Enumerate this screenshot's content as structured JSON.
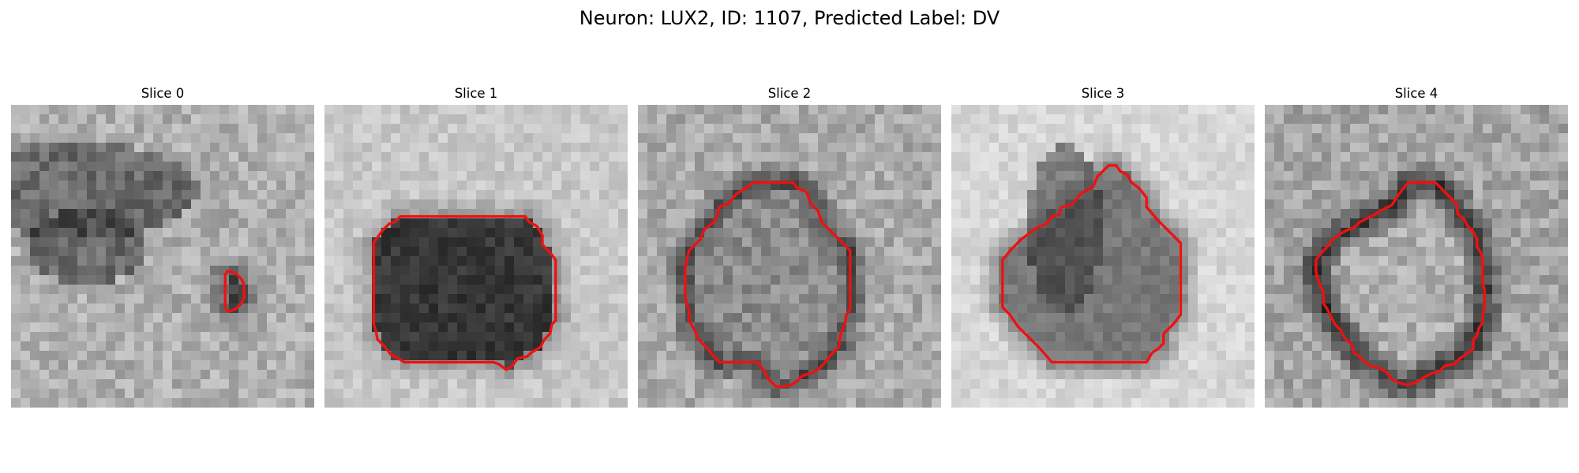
{
  "figure": {
    "title": "Neuron: LUX2, ID: 1107, Predicted Label: DV"
  },
  "contour_color": "#ee1111",
  "panels": [
    {
      "title": "Slice 0",
      "contour": [
        [
          23.2,
          17.6
        ],
        [
          23.8,
          17.9
        ],
        [
          24.3,
          18.4
        ],
        [
          24.6,
          19.0
        ],
        [
          24.6,
          20.4
        ],
        [
          24.3,
          21.0
        ],
        [
          23.8,
          21.5
        ],
        [
          23.2,
          21.8
        ],
        [
          22.8,
          21.8
        ],
        [
          22.6,
          21.4
        ],
        [
          22.6,
          18.0
        ],
        [
          22.8,
          17.6
        ]
      ]
    },
    {
      "title": "Slice 1",
      "contour": [
        [
          8.0,
          11.8
        ],
        [
          21.2,
          11.8
        ],
        [
          21.6,
          12.4
        ],
        [
          22.4,
          12.8
        ],
        [
          23.0,
          13.8
        ],
        [
          23.0,
          14.8
        ],
        [
          23.8,
          15.6
        ],
        [
          24.4,
          16.4
        ],
        [
          24.4,
          22.8
        ],
        [
          24.0,
          23.2
        ],
        [
          23.8,
          24.2
        ],
        [
          23.2,
          24.8
        ],
        [
          22.8,
          25.6
        ],
        [
          21.8,
          26.2
        ],
        [
          21.4,
          26.6
        ],
        [
          20.4,
          26.8
        ],
        [
          19.8,
          27.6
        ],
        [
          19.2,
          28.0
        ],
        [
          18.4,
          27.4
        ],
        [
          17.8,
          27.2
        ],
        [
          8.4,
          27.2
        ],
        [
          7.8,
          26.8
        ],
        [
          7.0,
          26.4
        ],
        [
          6.4,
          25.6
        ],
        [
          5.6,
          24.8
        ],
        [
          5.4,
          23.8
        ],
        [
          5.2,
          23.2
        ],
        [
          5.2,
          14.6
        ],
        [
          5.6,
          14.0
        ],
        [
          6.2,
          13.2
        ],
        [
          6.8,
          12.6
        ],
        [
          7.4,
          12.4
        ]
      ]
    },
    {
      "title": "Slice 2",
      "contour": [
        [
          12.2,
          8.2
        ],
        [
          16.4,
          8.2
        ],
        [
          16.8,
          8.8
        ],
        [
          17.8,
          9.2
        ],
        [
          18.2,
          10.4
        ],
        [
          19.0,
          11.2
        ],
        [
          19.4,
          12.4
        ],
        [
          20.6,
          13.6
        ],
        [
          21.8,
          14.8
        ],
        [
          22.4,
          15.4
        ],
        [
          22.4,
          21.6
        ],
        [
          22.0,
          22.2
        ],
        [
          21.8,
          23.4
        ],
        [
          21.4,
          24.2
        ],
        [
          21.2,
          25.6
        ],
        [
          20.4,
          26.4
        ],
        [
          19.6,
          27.4
        ],
        [
          19.0,
          28.0
        ],
        [
          18.2,
          28.4
        ],
        [
          17.4,
          28.6
        ],
        [
          16.8,
          29.2
        ],
        [
          16.2,
          29.6
        ],
        [
          15.4,
          29.8
        ],
        [
          14.6,
          29.8
        ],
        [
          14.2,
          29.4
        ],
        [
          13.6,
          28.8
        ],
        [
          13.4,
          28.2
        ],
        [
          12.6,
          27.2
        ],
        [
          8.6,
          27.2
        ],
        [
          8.0,
          26.6
        ],
        [
          7.4,
          25.8
        ],
        [
          6.4,
          24.8
        ],
        [
          6.0,
          23.8
        ],
        [
          5.4,
          22.8
        ],
        [
          5.4,
          21.8
        ],
        [
          5.0,
          20.4
        ],
        [
          5.0,
          17.2
        ],
        [
          5.4,
          15.4
        ],
        [
          6.6,
          14.2
        ],
        [
          7.0,
          13.2
        ],
        [
          8.2,
          12.2
        ],
        [
          8.6,
          10.8
        ],
        [
          9.6,
          10.4
        ],
        [
          10.4,
          9.4
        ],
        [
          11.4,
          8.8
        ]
      ]
    },
    {
      "title": "Slice 3",
      "contour": [
        [
          16.6,
          6.4
        ],
        [
          17.4,
          6.4
        ],
        [
          17.8,
          7.0
        ],
        [
          18.6,
          7.4
        ],
        [
          19.0,
          8.2
        ],
        [
          19.8,
          8.8
        ],
        [
          20.6,
          9.8
        ],
        [
          20.6,
          10.8
        ],
        [
          21.8,
          12.2
        ],
        [
          23.0,
          13.4
        ],
        [
          24.2,
          14.6
        ],
        [
          24.2,
          22.2
        ],
        [
          23.4,
          23.2
        ],
        [
          22.4,
          24.2
        ],
        [
          22.4,
          25.2
        ],
        [
          21.8,
          25.8
        ],
        [
          21.2,
          26.2
        ],
        [
          20.6,
          27.2
        ],
        [
          10.6,
          27.2
        ],
        [
          9.4,
          25.8
        ],
        [
          8.2,
          24.6
        ],
        [
          7.0,
          23.4
        ],
        [
          6.2,
          22.2
        ],
        [
          5.4,
          21.4
        ],
        [
          5.4,
          16.4
        ],
        [
          6.4,
          15.2
        ],
        [
          7.4,
          14.2
        ],
        [
          8.2,
          13.6
        ],
        [
          9.0,
          13.0
        ],
        [
          10.0,
          12.6
        ],
        [
          10.6,
          11.8
        ],
        [
          11.4,
          11.6
        ],
        [
          11.6,
          10.8
        ],
        [
          12.6,
          10.6
        ],
        [
          13.2,
          10.0
        ],
        [
          13.6,
          9.4
        ],
        [
          14.4,
          9.0
        ],
        [
          15.0,
          8.6
        ],
        [
          15.4,
          7.6
        ],
        [
          16.0,
          7.0
        ]
      ]
    },
    {
      "title": "Slice 4",
      "contour": [
        [
          15.2,
          8.2
        ],
        [
          18.0,
          8.2
        ],
        [
          18.6,
          8.8
        ],
        [
          19.0,
          9.2
        ],
        [
          19.6,
          9.8
        ],
        [
          20.2,
          10.4
        ],
        [
          20.4,
          11.6
        ],
        [
          21.0,
          12.0
        ],
        [
          21.4,
          12.8
        ],
        [
          22.0,
          13.4
        ],
        [
          22.4,
          14.2
        ],
        [
          22.4,
          15.0
        ],
        [
          22.8,
          15.6
        ],
        [
          23.0,
          16.4
        ],
        [
          23.0,
          18.8
        ],
        [
          23.2,
          19.6
        ],
        [
          23.2,
          21.4
        ],
        [
          23.0,
          22.2
        ],
        [
          23.0,
          23.0
        ],
        [
          22.6,
          23.6
        ],
        [
          22.4,
          24.4
        ],
        [
          22.0,
          24.8
        ],
        [
          22.0,
          25.8
        ],
        [
          21.2,
          26.4
        ],
        [
          20.6,
          26.8
        ],
        [
          20.0,
          27.4
        ],
        [
          19.0,
          27.6
        ],
        [
          18.4,
          28.2
        ],
        [
          17.6,
          28.4
        ],
        [
          16.8,
          28.8
        ],
        [
          15.8,
          29.4
        ],
        [
          15.0,
          29.6
        ],
        [
          14.2,
          29.4
        ],
        [
          13.4,
          29.0
        ],
        [
          12.8,
          28.2
        ],
        [
          12.0,
          27.8
        ],
        [
          11.2,
          27.6
        ],
        [
          10.6,
          27.2
        ],
        [
          10.0,
          26.6
        ],
        [
          9.4,
          26.2
        ],
        [
          9.2,
          25.4
        ],
        [
          8.4,
          24.6
        ],
        [
          8.0,
          23.8
        ],
        [
          7.4,
          23.2
        ],
        [
          7.0,
          22.4
        ],
        [
          6.6,
          21.6
        ],
        [
          6.2,
          21.0
        ],
        [
          6.2,
          19.8
        ],
        [
          5.8,
          19.0
        ],
        [
          5.6,
          18.4
        ],
        [
          5.4,
          17.6
        ],
        [
          5.4,
          16.4
        ],
        [
          6.0,
          15.6
        ],
        [
          6.6,
          15.0
        ],
        [
          7.2,
          14.2
        ],
        [
          8.0,
          13.6
        ],
        [
          8.8,
          13.2
        ],
        [
          9.4,
          13.0
        ],
        [
          10.0,
          12.4
        ],
        [
          10.8,
          12.0
        ],
        [
          11.6,
          11.6
        ],
        [
          12.6,
          11.0
        ],
        [
          13.4,
          10.6
        ],
        [
          13.8,
          10.0
        ],
        [
          14.2,
          9.4
        ],
        [
          14.8,
          8.6
        ]
      ]
    }
  ]
}
